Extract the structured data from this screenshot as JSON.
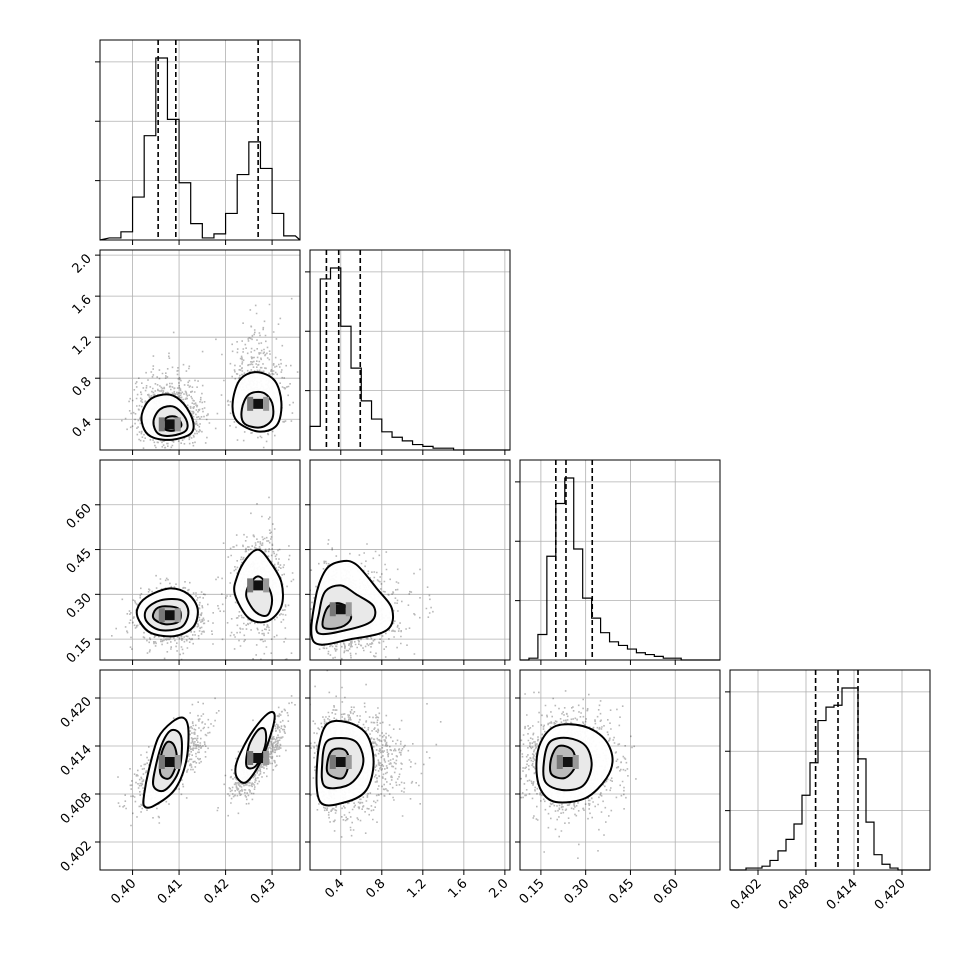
{
  "chart_data": {
    "type": "corner",
    "parameters": [
      {
        "range": [
          0.393,
          0.436
        ],
        "ticks": [
          0.4,
          0.41,
          0.42,
          0.43
        ],
        "tick_labels": [
          "0.40",
          "0.41",
          "0.42",
          "0.43"
        ]
      },
      {
        "range": [
          0.1,
          2.05
        ],
        "ticks": [
          0.4,
          0.8,
          1.2,
          1.6,
          2.0
        ],
        "tick_labels": [
          "0.4",
          "0.8",
          "1.2",
          "1.6",
          "2.0"
        ]
      },
      {
        "range": [
          0.08,
          0.75
        ],
        "ticks": [
          0.15,
          0.3,
          0.45,
          0.6
        ],
        "tick_labels": [
          "0.15",
          "0.30",
          "0.45",
          "0.60"
        ]
      },
      {
        "range": [
          0.3985,
          0.4235
        ],
        "ticks": [
          0.402,
          0.408,
          0.414,
          0.42
        ],
        "tick_labels": [
          "0.402",
          "0.408",
          "0.414",
          "0.420"
        ]
      }
    ],
    "grid": true,
    "histograms": [
      {
        "param": 0,
        "bin_edges": [
          0.395,
          0.3975,
          0.4,
          0.4025,
          0.405,
          0.4075,
          0.41,
          0.4125,
          0.415,
          0.4175,
          0.42,
          0.4225,
          0.425,
          0.4275,
          0.43,
          0.4325,
          0.435
        ],
        "counts": [
          1,
          4,
          21,
          51,
          89,
          59,
          28,
          8,
          1,
          3,
          13,
          32,
          48,
          35,
          13,
          2
        ],
        "quantiles": [
          0.4055,
          0.4093,
          0.427
        ]
      },
      {
        "param": 1,
        "bin_edges": [
          0.1,
          0.2,
          0.3,
          0.4,
          0.5,
          0.6,
          0.7,
          0.8,
          0.9,
          1.0,
          1.1,
          1.2,
          1.3,
          1.4,
          1.5,
          1.6,
          1.7,
          1.8,
          1.9,
          2.0
        ],
        "counts": [
          13,
          94,
          100,
          68,
          45,
          27,
          17,
          10,
          7,
          5,
          3,
          2,
          1,
          1,
          0,
          0,
          0,
          0,
          0
        ],
        "quantiles": [
          0.26,
          0.38,
          0.59
        ]
      },
      {
        "param": 2,
        "bin_edges": [
          0.08,
          0.11,
          0.14,
          0.17,
          0.2,
          0.23,
          0.26,
          0.29,
          0.32,
          0.35,
          0.38,
          0.41,
          0.44,
          0.47,
          0.5,
          0.53,
          0.56,
          0.59,
          0.62,
          0.65,
          0.68
        ],
        "counts": [
          0,
          1,
          14,
          57,
          86,
          100,
          61,
          34,
          23,
          15,
          10,
          8,
          6,
          4,
          3,
          2,
          1,
          1,
          0,
          0
        ],
        "quantiles": [
          0.2,
          0.234,
          0.322
        ]
      },
      {
        "param": 3,
        "bin_edges": [
          0.3995,
          0.4005,
          0.4015,
          0.4025,
          0.4035,
          0.4045,
          0.4055,
          0.4065,
          0.4075,
          0.4085,
          0.4095,
          0.4105,
          0.4115,
          0.4125,
          0.4135,
          0.4145,
          0.4155,
          0.4165,
          0.4175,
          0.4185,
          0.4195,
          0.4205,
          0.4215
        ],
        "counts": [
          0,
          1,
          1,
          2,
          5,
          10,
          16,
          24,
          39,
          56,
          78,
          85,
          86,
          95,
          95,
          58,
          25,
          8,
          3,
          1,
          0,
          0
        ],
        "quantiles": [
          0.4092,
          0.412,
          0.4145
        ]
      }
    ],
    "scatter_panels": [
      {
        "x_param": 0,
        "y_param": 1,
        "clusters": [
          {
            "x_center": 0.408,
            "y_center": 0.35,
            "x_spread": 0.0035,
            "y_spread": 0.16,
            "n": 900
          },
          {
            "x_center": 0.427,
            "y_center": 0.55,
            "x_spread": 0.003,
            "y_spread": 0.23,
            "n": 650
          }
        ],
        "contours": [
          [
            [
              0.4045,
              0.22
            ],
            [
              0.4085,
              0.2
            ],
            [
              0.4125,
              0.26
            ],
            [
              0.413,
              0.38
            ],
            [
              0.411,
              0.55
            ],
            [
              0.408,
              0.64
            ],
            [
              0.404,
              0.6
            ],
            [
              0.402,
              0.45
            ],
            [
              0.4025,
              0.3
            ]
          ],
          [
            [
              0.4055,
              0.26
            ],
            [
              0.4085,
              0.24
            ],
            [
              0.4115,
              0.29
            ],
            [
              0.4115,
              0.4
            ],
            [
              0.409,
              0.52
            ],
            [
              0.406,
              0.5
            ],
            [
              0.4045,
              0.38
            ]
          ],
          [
            [
              0.407,
              0.3
            ],
            [
              0.409,
              0.29
            ],
            [
              0.4105,
              0.34
            ],
            [
              0.4095,
              0.42
            ],
            [
              0.4075,
              0.42
            ],
            [
              0.4065,
              0.36
            ]
          ],
          [
            [
              0.4225,
              0.38
            ],
            [
              0.427,
              0.28
            ],
            [
              0.431,
              0.34
            ],
            [
              0.432,
              0.56
            ],
            [
              0.4305,
              0.78
            ],
            [
              0.4265,
              0.86
            ],
            [
              0.423,
              0.78
            ],
            [
              0.4215,
              0.55
            ]
          ],
          [
            [
              0.424,
              0.36
            ],
            [
              0.4275,
              0.32
            ],
            [
              0.43,
              0.4
            ],
            [
              0.43,
              0.56
            ],
            [
              0.428,
              0.66
            ],
            [
              0.425,
              0.64
            ],
            [
              0.4235,
              0.5
            ]
          ]
        ]
      },
      {
        "x_param": 0,
        "y_param": 2,
        "clusters": [
          {
            "x_center": 0.408,
            "y_center": 0.23,
            "x_spread": 0.0035,
            "y_spread": 0.045,
            "n": 900
          },
          {
            "x_center": 0.427,
            "y_center": 0.33,
            "x_spread": 0.003,
            "y_spread": 0.09,
            "n": 650
          }
        ],
        "contours": [
          [
            [
              0.4015,
              0.21
            ],
            [
              0.404,
              0.17
            ],
            [
              0.409,
              0.16
            ],
            [
              0.413,
              0.19
            ],
            [
              0.414,
              0.25
            ],
            [
              0.412,
              0.3
            ],
            [
              0.408,
              0.32
            ],
            [
              0.403,
              0.29
            ],
            [
              0.401,
              0.25
            ]
          ],
          [
            [
              0.403,
              0.21
            ],
            [
              0.406,
              0.18
            ],
            [
              0.4105,
              0.19
            ],
            [
              0.412,
              0.24
            ],
            [
              0.4105,
              0.28
            ],
            [
              0.406,
              0.28
            ],
            [
              0.403,
              0.25
            ]
          ],
          [
            [
              0.4045,
              0.22
            ],
            [
              0.407,
              0.2
            ],
            [
              0.41,
              0.21
            ],
            [
              0.41,
              0.25
            ],
            [
              0.407,
              0.26
            ],
            [
              0.405,
              0.25
            ]
          ],
          [
            [
              0.422,
              0.3
            ],
            [
              0.425,
              0.22
            ],
            [
              0.429,
              0.21
            ],
            [
              0.432,
              0.26
            ],
            [
              0.432,
              0.34
            ],
            [
              0.4295,
              0.41
            ],
            [
              0.427,
              0.45
            ],
            [
              0.4245,
              0.42
            ],
            [
              0.4225,
              0.36
            ]
          ],
          [
            [
              0.4245,
              0.29
            ],
            [
              0.4265,
              0.24
            ],
            [
              0.429,
              0.23
            ],
            [
              0.43,
              0.28
            ],
            [
              0.429,
              0.33
            ],
            [
              0.427,
              0.36
            ],
            [
              0.425,
              0.33
            ]
          ]
        ]
      },
      {
        "x_param": 0,
        "y_param": 3,
        "clusters": [
          {
            "x_center": 0.408,
            "y_center": 0.412,
            "x_spread": 0.0035,
            "y_spread": 0.0025,
            "n": 900,
            "correlation": 0.7
          },
          {
            "x_center": 0.427,
            "y_center": 0.4125,
            "x_spread": 0.003,
            "y_spread": 0.0025,
            "n": 650,
            "correlation": 0.8
          }
        ],
        "contours": [
          [
            [
              0.4025,
              0.4065
            ],
            [
              0.4045,
              0.4065
            ],
            [
              0.409,
              0.4085
            ],
            [
              0.4115,
              0.412
            ],
            [
              0.412,
              0.416
            ],
            [
              0.411,
              0.4175
            ],
            [
              0.4085,
              0.417
            ],
            [
              0.4055,
              0.415
            ],
            [
              0.4035,
              0.411
            ],
            [
              0.4025,
              0.408
            ]
          ],
          [
            [
              0.4045,
              0.409
            ],
            [
              0.407,
              0.4085
            ],
            [
              0.41,
              0.411
            ],
            [
              0.4105,
              0.415
            ],
            [
              0.4085,
              0.416
            ],
            [
              0.4065,
              0.4145
            ],
            [
              0.405,
              0.4115
            ]
          ],
          [
            [
              0.406,
              0.4105
            ],
            [
              0.408,
              0.41
            ],
            [
              0.4095,
              0.412
            ],
            [
              0.409,
              0.414
            ],
            [
              0.4075,
              0.4145
            ],
            [
              0.4062,
              0.413
            ]
          ],
          [
            [
              0.4225,
              0.41
            ],
            [
              0.4245,
              0.4095
            ],
            [
              0.4275,
              0.412
            ],
            [
              0.43,
              0.416
            ],
            [
              0.4305,
              0.418
            ],
            [
              0.429,
              0.418
            ],
            [
              0.426,
              0.416
            ],
            [
              0.4235,
              0.4135
            ],
            [
              0.4222,
              0.4115
            ]
          ],
          [
            [
              0.4245,
              0.4115
            ],
            [
              0.4265,
              0.4115
            ],
            [
              0.4285,
              0.414
            ],
            [
              0.4285,
              0.416
            ],
            [
              0.427,
              0.416
            ],
            [
              0.425,
              0.414
            ]
          ]
        ]
      },
      {
        "x_param": 1,
        "y_param": 2,
        "clusters": [
          {
            "x_center": 0.4,
            "y_center": 0.25,
            "x_spread": 0.18,
            "y_spread": 0.07,
            "n": 1500
          }
        ],
        "contours": [
          [
            [
              0.14,
              0.14
            ],
            [
              0.5,
              0.15
            ],
            [
              0.85,
              0.18
            ],
            [
              0.9,
              0.25
            ],
            [
              0.75,
              0.32
            ],
            [
              0.55,
              0.4
            ],
            [
              0.4,
              0.41
            ],
            [
              0.25,
              0.38
            ],
            [
              0.15,
              0.28
            ]
          ],
          [
            [
              0.18,
              0.17
            ],
            [
              0.45,
              0.18
            ],
            [
              0.7,
              0.21
            ],
            [
              0.72,
              0.26
            ],
            [
              0.55,
              0.3
            ],
            [
              0.4,
              0.33
            ],
            [
              0.25,
              0.31
            ],
            [
              0.19,
              0.24
            ]
          ],
          [
            [
              0.23,
              0.19
            ],
            [
              0.4,
              0.19
            ],
            [
              0.5,
              0.22
            ],
            [
              0.45,
              0.26
            ],
            [
              0.35,
              0.27
            ],
            [
              0.26,
              0.25
            ]
          ]
        ]
      },
      {
        "x_param": 1,
        "y_param": 3,
        "clusters": [
          {
            "x_center": 0.4,
            "y_center": 0.412,
            "x_spread": 0.2,
            "y_spread": 0.003,
            "n": 1500
          }
        ],
        "contours": [
          [
            [
              0.2,
              0.407
            ],
            [
              0.45,
              0.407
            ],
            [
              0.65,
              0.4085
            ],
            [
              0.72,
              0.412
            ],
            [
              0.65,
              0.4155
            ],
            [
              0.45,
              0.417
            ],
            [
              0.25,
              0.4165
            ],
            [
              0.17,
              0.412
            ]
          ],
          [
            [
              0.24,
              0.409
            ],
            [
              0.45,
              0.409
            ],
            [
              0.58,
              0.4105
            ],
            [
              0.62,
              0.4125
            ],
            [
              0.55,
              0.4145
            ],
            [
              0.4,
              0.415
            ],
            [
              0.26,
              0.4145
            ],
            [
              0.22,
              0.412
            ]
          ],
          [
            [
              0.28,
              0.4105
            ],
            [
              0.42,
              0.41
            ],
            [
              0.48,
              0.412
            ],
            [
              0.44,
              0.4135
            ],
            [
              0.32,
              0.4135
            ],
            [
              0.27,
              0.412
            ]
          ]
        ]
      },
      {
        "x_param": 2,
        "y_param": 3,
        "clusters": [
          {
            "x_center": 0.24,
            "y_center": 0.412,
            "x_spread": 0.075,
            "y_spread": 0.003,
            "n": 1500
          }
        ],
        "contours": [
          [
            [
              0.15,
              0.4085
            ],
            [
              0.2,
              0.407
            ],
            [
              0.3,
              0.4075
            ],
            [
              0.37,
              0.41
            ],
            [
              0.39,
              0.4125
            ],
            [
              0.36,
              0.415
            ],
            [
              0.29,
              0.4165
            ],
            [
              0.2,
              0.4165
            ],
            [
              0.15,
              0.4145
            ],
            [
              0.135,
              0.4115
            ]
          ],
          [
            [
              0.165,
              0.4095
            ],
            [
              0.22,
              0.4085
            ],
            [
              0.29,
              0.409
            ],
            [
              0.32,
              0.4115
            ],
            [
              0.3,
              0.414
            ],
            [
              0.24,
              0.415
            ],
            [
              0.18,
              0.4145
            ],
            [
              0.16,
              0.412
            ]
          ],
          [
            [
              0.185,
              0.4105
            ],
            [
              0.23,
              0.41
            ],
            [
              0.265,
              0.4115
            ],
            [
              0.255,
              0.4135
            ],
            [
              0.21,
              0.414
            ],
            [
              0.185,
              0.4125
            ]
          ]
        ]
      }
    ]
  }
}
